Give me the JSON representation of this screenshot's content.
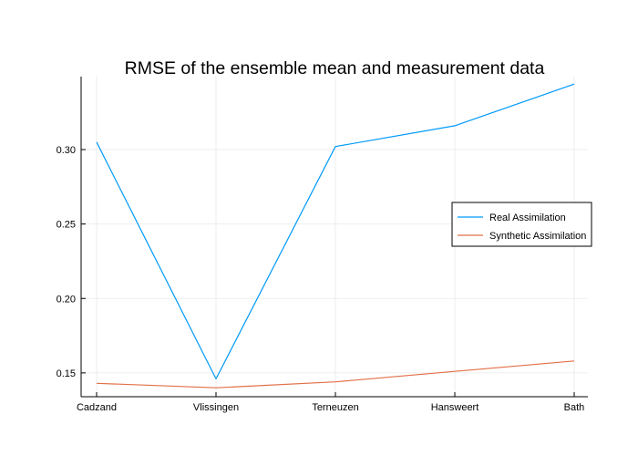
{
  "chart_data": {
    "type": "line",
    "title": "RMSE of the ensemble mean and measurement data",
    "xlabel": "",
    "ylabel": "",
    "categories": [
      "Cadzand",
      "Vlissingen",
      "Terneuzen",
      "Hansweert",
      "Bath"
    ],
    "series": [
      {
        "name": "Real Assimilation",
        "color": "#009AF9",
        "values": [
          0.305,
          0.146,
          0.302,
          0.316,
          0.344
        ]
      },
      {
        "name": "Synthetic Assimilation",
        "color": "#E26F46",
        "values": [
          0.143,
          0.14,
          0.144,
          0.151,
          0.158
        ]
      }
    ],
    "ylim": [
      0.134,
      0.349
    ],
    "yticks": [
      0.15,
      0.2,
      0.25,
      0.3
    ],
    "ytick_labels": [
      "0.15",
      "0.20",
      "0.25",
      "0.30"
    ],
    "grid": true,
    "legend_position": "right"
  }
}
